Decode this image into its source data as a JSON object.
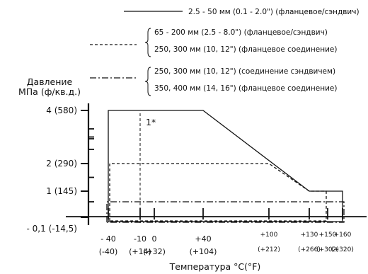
{
  "chart_data": {
    "type": "line",
    "title": "",
    "ylabel_line1": "Давление",
    "ylabel_line2": "МПа (ф/кв.д.)",
    "xlabel": "Температура °C(°F)",
    "x_ticks": [
      {
        "c": -40,
        "label_c": "- 40",
        "label_f": "(-40)",
        "small": false
      },
      {
        "c": -10,
        "label_c": "-10",
        "label_f": "(+14)",
        "small": false
      },
      {
        "c": 0,
        "label_c": "0",
        "label_f": "(+32)",
        "small": false
      },
      {
        "c": 40,
        "label_c": "+40",
        "label_f": "(+104)",
        "small": false
      },
      {
        "c": 100,
        "label_c": "+100",
        "label_f": "(+212)",
        "small": true
      },
      {
        "c": 130,
        "label_c": "+130",
        "label_f": "(+266)",
        "small": true
      },
      {
        "c": 150,
        "label_c": "+150",
        "label_f": "(+302)",
        "small": true
      },
      {
        "c": 160,
        "label_c": "+160",
        "label_f": "(+320)",
        "small": true
      }
    ],
    "y_ticks": [
      {
        "value": 4,
        "label": "4 (580)"
      },
      {
        "value": 2,
        "label": "2 (290)"
      },
      {
        "value": 1,
        "label": "1 (145)"
      },
      {
        "value": -0.1,
        "label": "- 0,1 (-14,5)"
      }
    ],
    "annotation": {
      "text": "1*",
      "x": -10
    },
    "series": [
      {
        "name_lines": [
          "2.5 - 50 мм (0.1 - 2.0\") (фланцевое/сэндвич)"
        ],
        "style": "solid",
        "points": [
          [
            -40,
            -0.1
          ],
          [
            -40,
            4
          ],
          [
            40,
            4
          ],
          [
            130,
            1
          ],
          [
            160,
            1
          ],
          [
            160,
            -0.1
          ],
          [
            -40,
            -0.1
          ]
        ]
      },
      {
        "name_lines": [
          "65 - 200 мм (2.5 - 8.0\") (фланцевое/сэндвич)",
          "250, 300 мм (10, 12\") (фланцевое соединение)"
        ],
        "style": "dashed",
        "points": [
          [
            -40,
            -0.1
          ],
          [
            -40,
            2
          ],
          [
            100,
            2
          ],
          [
            130,
            1
          ],
          [
            150,
            1
          ],
          [
            150,
            -0.1
          ],
          [
            -40,
            -0.1
          ]
        ]
      },
      {
        "name_lines": [
          "250, 300 мм (10, 12\") (соединение сэндвичем)",
          "350, 400 мм (14, 16\") (фланцевое соединение)"
        ],
        "style": "dashdot",
        "points": [
          [
            -40,
            -0.1
          ],
          [
            -40,
            0.5
          ],
          [
            160,
            0.5
          ],
          [
            160,
            -0.1
          ],
          [
            -40,
            -0.1
          ]
        ]
      }
    ],
    "reference_lines": [
      {
        "orientation": "vertical",
        "x": -10,
        "style": "dashed"
      }
    ]
  }
}
